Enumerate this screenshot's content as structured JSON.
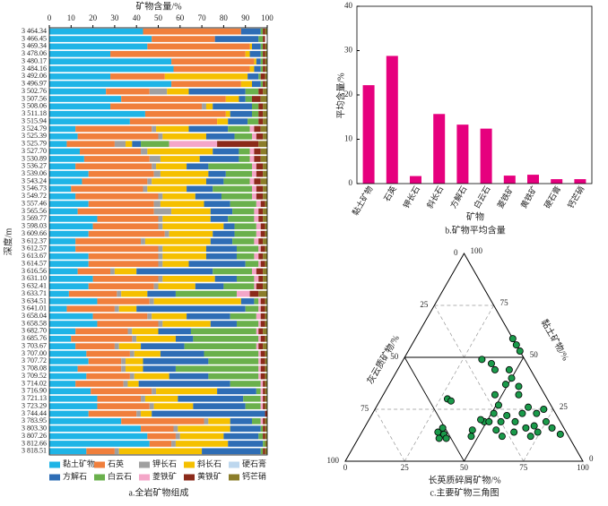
{
  "chart_data": [
    {
      "type": "stacked_barh",
      "title": "矿物含量/%",
      "ylabel": "深度/m",
      "caption": "a.全岩矿物组成",
      "xlim": [
        0,
        100
      ],
      "xticks": [
        0,
        10,
        20,
        30,
        40,
        50,
        60,
        70,
        80,
        90,
        100
      ],
      "categories": [
        "3 464.34",
        "3 466.45",
        "3 469.34",
        "3 478.06",
        "3 480.17",
        "3 484.16",
        "3 492.06",
        "3 496.97",
        "3 502.76",
        "3 507.56",
        "3 508.06",
        "3 511.18",
        "3 515.94",
        "3 524.79",
        "3 525.39",
        "3 525.79",
        "3 527.70",
        "3 530.89",
        "3 536.27",
        "3 539.06",
        "3 543.24",
        "3 546.73",
        "3 549.72",
        "3 557.46",
        "3 565.56",
        "3 569.77",
        "3 598.03",
        "3 609.66",
        "3 612.37",
        "3 612.57",
        "3 613.67",
        "3 614.57",
        "3 616.56",
        "3 631.10",
        "3 632.41",
        "3 633.71",
        "3 634.51",
        "3 641.01",
        "3 658.04",
        "3 658.58",
        "3 682.70",
        "3 685.76",
        "3 703.67",
        "3 707.00",
        "3 707.72",
        "3 708.08",
        "3 709.52",
        "3 714.02",
        "3 716.90",
        "3 721.13",
        "3 723.29",
        "3 744.44",
        "3 783.95",
        "3 803.30",
        "3 807.26",
        "3 812.66",
        "3 818.51"
      ],
      "series": [
        {
          "name": "黏土矿物",
          "color": "#1fb4e6",
          "values": [
            43,
            47,
            45,
            28,
            56,
            57,
            28,
            56,
            26,
            33,
            28,
            44,
            37,
            12,
            13,
            8,
            14,
            16,
            12,
            18,
            15,
            10,
            12,
            18,
            13,
            22,
            20,
            18,
            12,
            12,
            18,
            18,
            13,
            20,
            18,
            9,
            22,
            8,
            20,
            22,
            12,
            10,
            12,
            17,
            18,
            13,
            17,
            12,
            19,
            22,
            22,
            18,
            33,
            42,
            45,
            46,
            17
          ]
        },
        {
          "name": "石英",
          "color": "#f07f3c",
          "values": [
            45,
            29,
            47,
            62,
            38,
            35,
            25,
            32,
            20,
            48,
            42,
            37,
            40,
            35,
            37,
            22,
            28,
            30,
            35,
            30,
            30,
            33,
            38,
            30,
            35,
            28,
            30,
            35,
            30,
            38,
            32,
            32,
            15,
            30,
            30,
            22,
            24,
            22,
            25,
            28,
            24,
            28,
            18,
            20,
            15,
            20,
            20,
            22,
            28,
            20,
            24,
            22,
            38,
            15,
            13,
            10,
            13
          ]
        },
        {
          "name": "钾长石",
          "color": "#a0a0a0",
          "values": [
            0,
            0,
            0,
            0,
            0,
            0,
            0,
            0,
            8,
            0,
            2,
            0,
            0,
            2,
            2,
            5,
            3,
            5,
            2,
            3,
            2,
            2,
            2,
            3,
            8,
            2,
            2,
            2,
            2,
            2,
            2,
            2,
            2,
            2,
            2,
            2,
            2,
            2,
            2,
            2,
            2,
            2,
            2,
            2,
            2,
            2,
            2,
            2,
            2,
            2,
            2,
            2,
            2,
            2,
            2,
            2,
            2
          ]
        },
        {
          "name": "斜长石",
          "color": "#f5c000",
          "values": [
            0,
            0,
            1,
            2,
            1,
            2,
            38,
            5,
            10,
            6,
            3,
            2,
            5,
            15,
            20,
            3,
            30,
            18,
            14,
            22,
            25,
            18,
            15,
            20,
            18,
            22,
            28,
            20,
            30,
            20,
            20,
            12,
            10,
            24,
            17,
            12,
            40,
            8,
            16,
            22,
            12,
            18,
            10,
            12,
            8,
            8,
            16,
            5,
            28,
            15,
            18,
            5,
            10,
            24,
            20,
            24,
            38
          ]
        },
        {
          "name": "硬石膏",
          "color": "#bdd7ee",
          "values": [
            0,
            0,
            0,
            0,
            0,
            0,
            0,
            0,
            0,
            0,
            0,
            0,
            0,
            0,
            0,
            0,
            0,
            0,
            0,
            0,
            0,
            0,
            0,
            0,
            0,
            0,
            0,
            0,
            0,
            0,
            0,
            0,
            0,
            0,
            0,
            0,
            0,
            0,
            0,
            0,
            0,
            0,
            0,
            0,
            0,
            0,
            0,
            0,
            0,
            0,
            0,
            0,
            0,
            0,
            0,
            0,
            0
          ]
        },
        {
          "name": "方解石",
          "color": "#2e6db5",
          "values": [
            9,
            20,
            4,
            5,
            2,
            3,
            5,
            4,
            26,
            3,
            18,
            10,
            9,
            18,
            13,
            4,
            12,
            18,
            10,
            8,
            8,
            12,
            12,
            12,
            10,
            8,
            5,
            10,
            10,
            14,
            14,
            26,
            35,
            10,
            13,
            13,
            6,
            50,
            20,
            12,
            15,
            8,
            20,
            20,
            30,
            15,
            18,
            42,
            18,
            30,
            24,
            52,
            10,
            14,
            16,
            16,
            27
          ]
        },
        {
          "name": "白云石",
          "color": "#6ab04c",
          "values": [
            1,
            2,
            1,
            1,
            1,
            1,
            1,
            1,
            6,
            3,
            3,
            3,
            5,
            10,
            8,
            13,
            5,
            5,
            20,
            12,
            12,
            18,
            14,
            12,
            10,
            12,
            10,
            10,
            10,
            10,
            8,
            6,
            18,
            8,
            14,
            28,
            2,
            6,
            12,
            10,
            30,
            30,
            33,
            25,
            23,
            38,
            23,
            14,
            2,
            8,
            7,
            0,
            4,
            1,
            2,
            1,
            1
          ]
        },
        {
          "name": "菱铁矿",
          "color": "#f4a6c8",
          "values": [
            0,
            0,
            0,
            0,
            0,
            0,
            0,
            0,
            0,
            0,
            0,
            0,
            0,
            2,
            2,
            22,
            2,
            2,
            2,
            2,
            2,
            2,
            2,
            2,
            2,
            2,
            2,
            2,
            2,
            1,
            2,
            1,
            2,
            2,
            1,
            6,
            1,
            1,
            2,
            1,
            1,
            1,
            1,
            1,
            1,
            1,
            1,
            1,
            1,
            1,
            1,
            0,
            1,
            0,
            0,
            0,
            0
          ]
        },
        {
          "name": "黄铁矿",
          "color": "#8b2a1a",
          "values": [
            1,
            1,
            1,
            1,
            1,
            1,
            2,
            1,
            2,
            4,
            2,
            2,
            2,
            3,
            3,
            19,
            3,
            3,
            3,
            3,
            3,
            3,
            3,
            2,
            2,
            2,
            2,
            2,
            2,
            2,
            2,
            2,
            3,
            2,
            3,
            4,
            2,
            2,
            2,
            2,
            2,
            2,
            2,
            2,
            2,
            2,
            2,
            1,
            1,
            1,
            1,
            1,
            1,
            1,
            1,
            0,
            1
          ]
        },
        {
          "name": "钙芒硝",
          "color": "#8b7d2a",
          "values": [
            1,
            0,
            1,
            1,
            1,
            1,
            1,
            1,
            2,
            3,
            2,
            2,
            2,
            3,
            2,
            4,
            3,
            3,
            2,
            2,
            3,
            2,
            2,
            1,
            2,
            2,
            1,
            1,
            2,
            1,
            2,
            1,
            2,
            2,
            2,
            4,
            1,
            1,
            1,
            1,
            2,
            1,
            2,
            1,
            1,
            1,
            1,
            1,
            1,
            1,
            1,
            0,
            1,
            1,
            1,
            1,
            1
          ]
        }
      ]
    },
    {
      "type": "bar",
      "caption": "b.矿物平均含量",
      "xlabel": "矿物",
      "ylabel": "平均含量/%",
      "color": "#e6007e",
      "categories": [
        "黏土矿物",
        "石英",
        "钾长石",
        "斜长石",
        "方解石",
        "白云石",
        "菱铁矿",
        "黄铁矿",
        "硬石膏",
        "钙芒硝"
      ],
      "values": [
        22.2,
        28.8,
        1.7,
        15.7,
        13.3,
        12.4,
        1.8,
        2.0,
        1.0,
        1.0
      ],
      "ylim": [
        0,
        40
      ],
      "yticks": [
        0,
        10,
        20,
        30,
        40
      ]
    },
    {
      "type": "ternary",
      "caption": "c.主要矿物三角图",
      "bottom_label": "长英质碎屑矿物/%",
      "left_label": "灰云质矿物/%",
      "right_label": "黏土矿物/%",
      "ticks": [
        0,
        25,
        50,
        75,
        100
      ],
      "color": "#1a9a4a",
      "felsic": [
        41,
        44,
        47,
        33,
        38,
        41,
        47,
        50,
        49,
        57,
        55,
        28,
        30,
        47,
        51,
        51,
        49,
        47,
        51,
        56,
        57,
        62,
        63,
        64,
        69,
        71,
        75,
        71,
        68,
        64,
        56,
        46,
        47,
        60,
        72,
        84,
        32,
        35,
        34,
        37,
        33,
        74,
        79
      ],
      "carbonate": [
        0,
        0,
        0,
        18,
        15,
        15,
        9,
        10,
        14,
        11,
        9,
        42,
        41,
        21,
        22,
        26,
        32,
        33,
        30,
        25,
        21,
        19,
        14,
        10,
        8,
        4,
        6,
        12,
        16,
        22,
        29,
        39,
        41,
        28,
        16,
        3,
        54,
        52,
        55,
        52,
        51,
        12,
        5
      ],
      "clay": [
        59,
        56,
        53,
        49,
        47,
        44,
        44,
        40,
        37,
        32,
        36,
        30,
        29,
        32,
        27,
        23,
        19,
        20,
        19,
        19,
        22,
        19,
        23,
        26,
        23,
        25,
        19,
        17,
        16,
        14,
        15,
        15,
        12,
        12,
        12,
        13,
        14,
        13,
        11,
        11,
        16,
        14,
        16
      ]
    }
  ]
}
